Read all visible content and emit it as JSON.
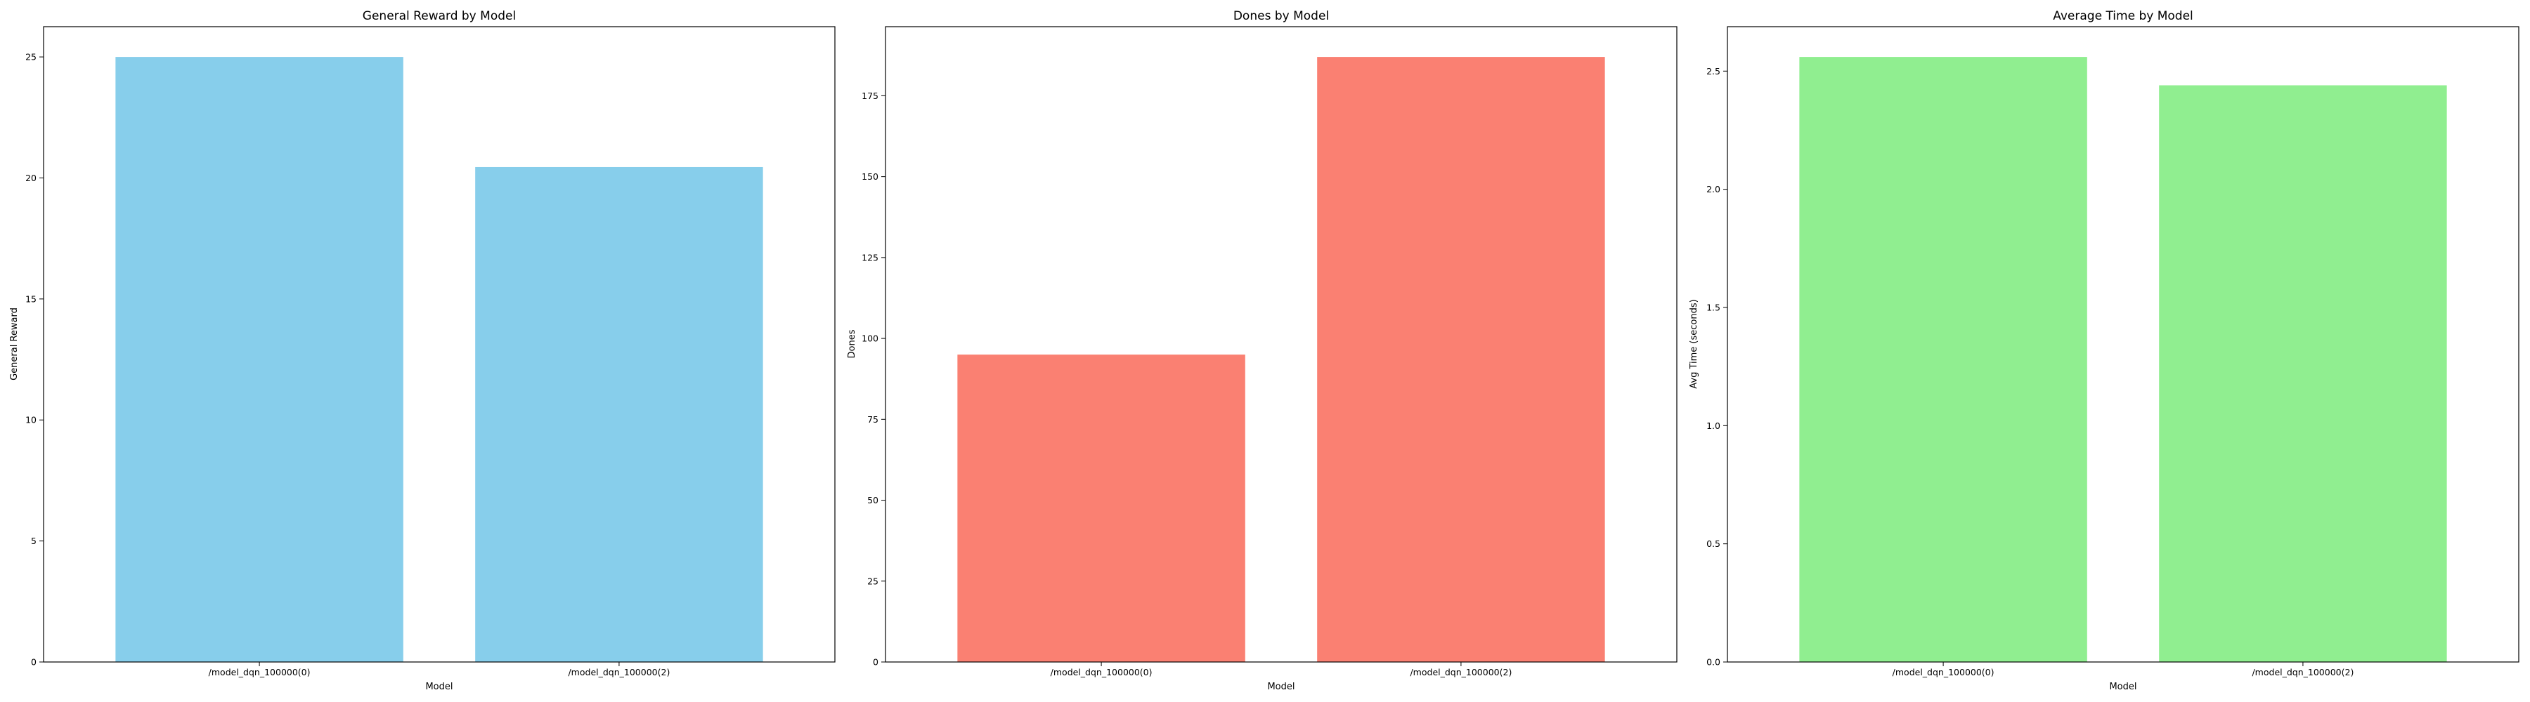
{
  "chart_data": [
    {
      "type": "bar",
      "title": "General Reward by Model",
      "xlabel": "Model",
      "ylabel": "General Reward",
      "categories": [
        "/model_dqn_100000(0)",
        "/model_dqn_100000(2)"
      ],
      "values": [
        25.0,
        20.45
      ],
      "ylim": [
        0,
        26.25
      ],
      "yticks": [
        0,
        5,
        10,
        15,
        20,
        25
      ],
      "ytick_labels": [
        "0",
        "5",
        "10",
        "15",
        "20",
        "25"
      ],
      "color": "#87CEEB",
      "grid": false
    },
    {
      "type": "bar",
      "title": "Dones by Model",
      "xlabel": "Model",
      "ylabel": "Dones",
      "categories": [
        "/model_dqn_100000(0)",
        "/model_dqn_100000(2)"
      ],
      "values": [
        95,
        187
      ],
      "ylim": [
        0,
        196.35
      ],
      "yticks": [
        0,
        25,
        50,
        75,
        100,
        125,
        150,
        175
      ],
      "ytick_labels": [
        "0",
        "25",
        "50",
        "75",
        "100",
        "125",
        "150",
        "175"
      ],
      "color": "#FA8072",
      "grid": false
    },
    {
      "type": "bar",
      "title": "Average Time by Model",
      "xlabel": "Model",
      "ylabel": "Avg Time (seconds)",
      "categories": [
        "/model_dqn_100000(0)",
        "/model_dqn_100000(2)"
      ],
      "values": [
        2.56,
        2.44
      ],
      "ylim": [
        0,
        2.688
      ],
      "yticks": [
        0,
        0.5,
        1.0,
        1.5,
        2.0,
        2.5
      ],
      "ytick_labels": [
        "0.0",
        "0.5",
        "1.0",
        "1.5",
        "2.0",
        "2.5"
      ],
      "color": "#90EE90",
      "grid": false
    }
  ]
}
